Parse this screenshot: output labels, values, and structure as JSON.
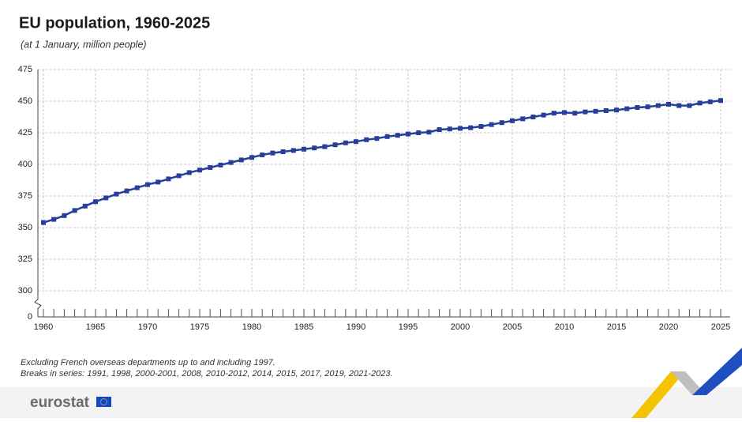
{
  "chart_data": {
    "type": "line",
    "title": "EU population, 1960-2025",
    "subtitle": "(at 1 January, million people)",
    "x": [
      1960,
      1961,
      1962,
      1963,
      1964,
      1965,
      1966,
      1967,
      1968,
      1969,
      1970,
      1971,
      1972,
      1973,
      1974,
      1975,
      1976,
      1977,
      1978,
      1979,
      1980,
      1981,
      1982,
      1983,
      1984,
      1985,
      1986,
      1987,
      1988,
      1989,
      1990,
      1991,
      1992,
      1993,
      1994,
      1995,
      1996,
      1997,
      1998,
      1999,
      2000,
      2001,
      2002,
      2003,
      2004,
      2005,
      2006,
      2007,
      2008,
      2009,
      2010,
      2011,
      2012,
      2013,
      2014,
      2015,
      2016,
      2017,
      2018,
      2019,
      2020,
      2021,
      2022,
      2023,
      2024,
      2025
    ],
    "series": [
      {
        "color": "#283f9a",
        "values": [
          354,
          356.5,
          359.5,
          363.5,
          367,
          370.5,
          373.5,
          376.5,
          379,
          381.5,
          384,
          386,
          388.5,
          391,
          393.5,
          395.5,
          397.5,
          399.5,
          401.5,
          403.5,
          405.5,
          407.5,
          409,
          410,
          411,
          412,
          413,
          414,
          415.5,
          417,
          418,
          419.5,
          420.5,
          422,
          423,
          424,
          425,
          425.5,
          427.5,
          428,
          428.5,
          429,
          430,
          431.5,
          433,
          434.5,
          436,
          437.5,
          439,
          440.5,
          441,
          440.5,
          441.5,
          442,
          442.5,
          443,
          444,
          445,
          445.5,
          446.5,
          447.5,
          446.5,
          446.5,
          448.5,
          449.5,
          450.5
        ]
      }
    ],
    "xlim": [
      1960,
      2025
    ],
    "xticks": [
      1960,
      1965,
      1970,
      1975,
      1980,
      1985,
      1990,
      1995,
      2000,
      2005,
      2010,
      2015,
      2020,
      2025
    ],
    "ylim": [
      0,
      475
    ],
    "yticks": [
      0,
      300,
      325,
      350,
      375,
      400,
      425,
      450,
      475
    ],
    "axis_break": true,
    "grid": true,
    "notes": [
      "Excluding French overseas departments up to and including 1997.",
      "Breaks in series: 1991, 1998, 2000-2001, 2008, 2010-2012, 2014, 2015, 2017, 2019, 2021-2023."
    ],
    "logo": "eurostat"
  }
}
